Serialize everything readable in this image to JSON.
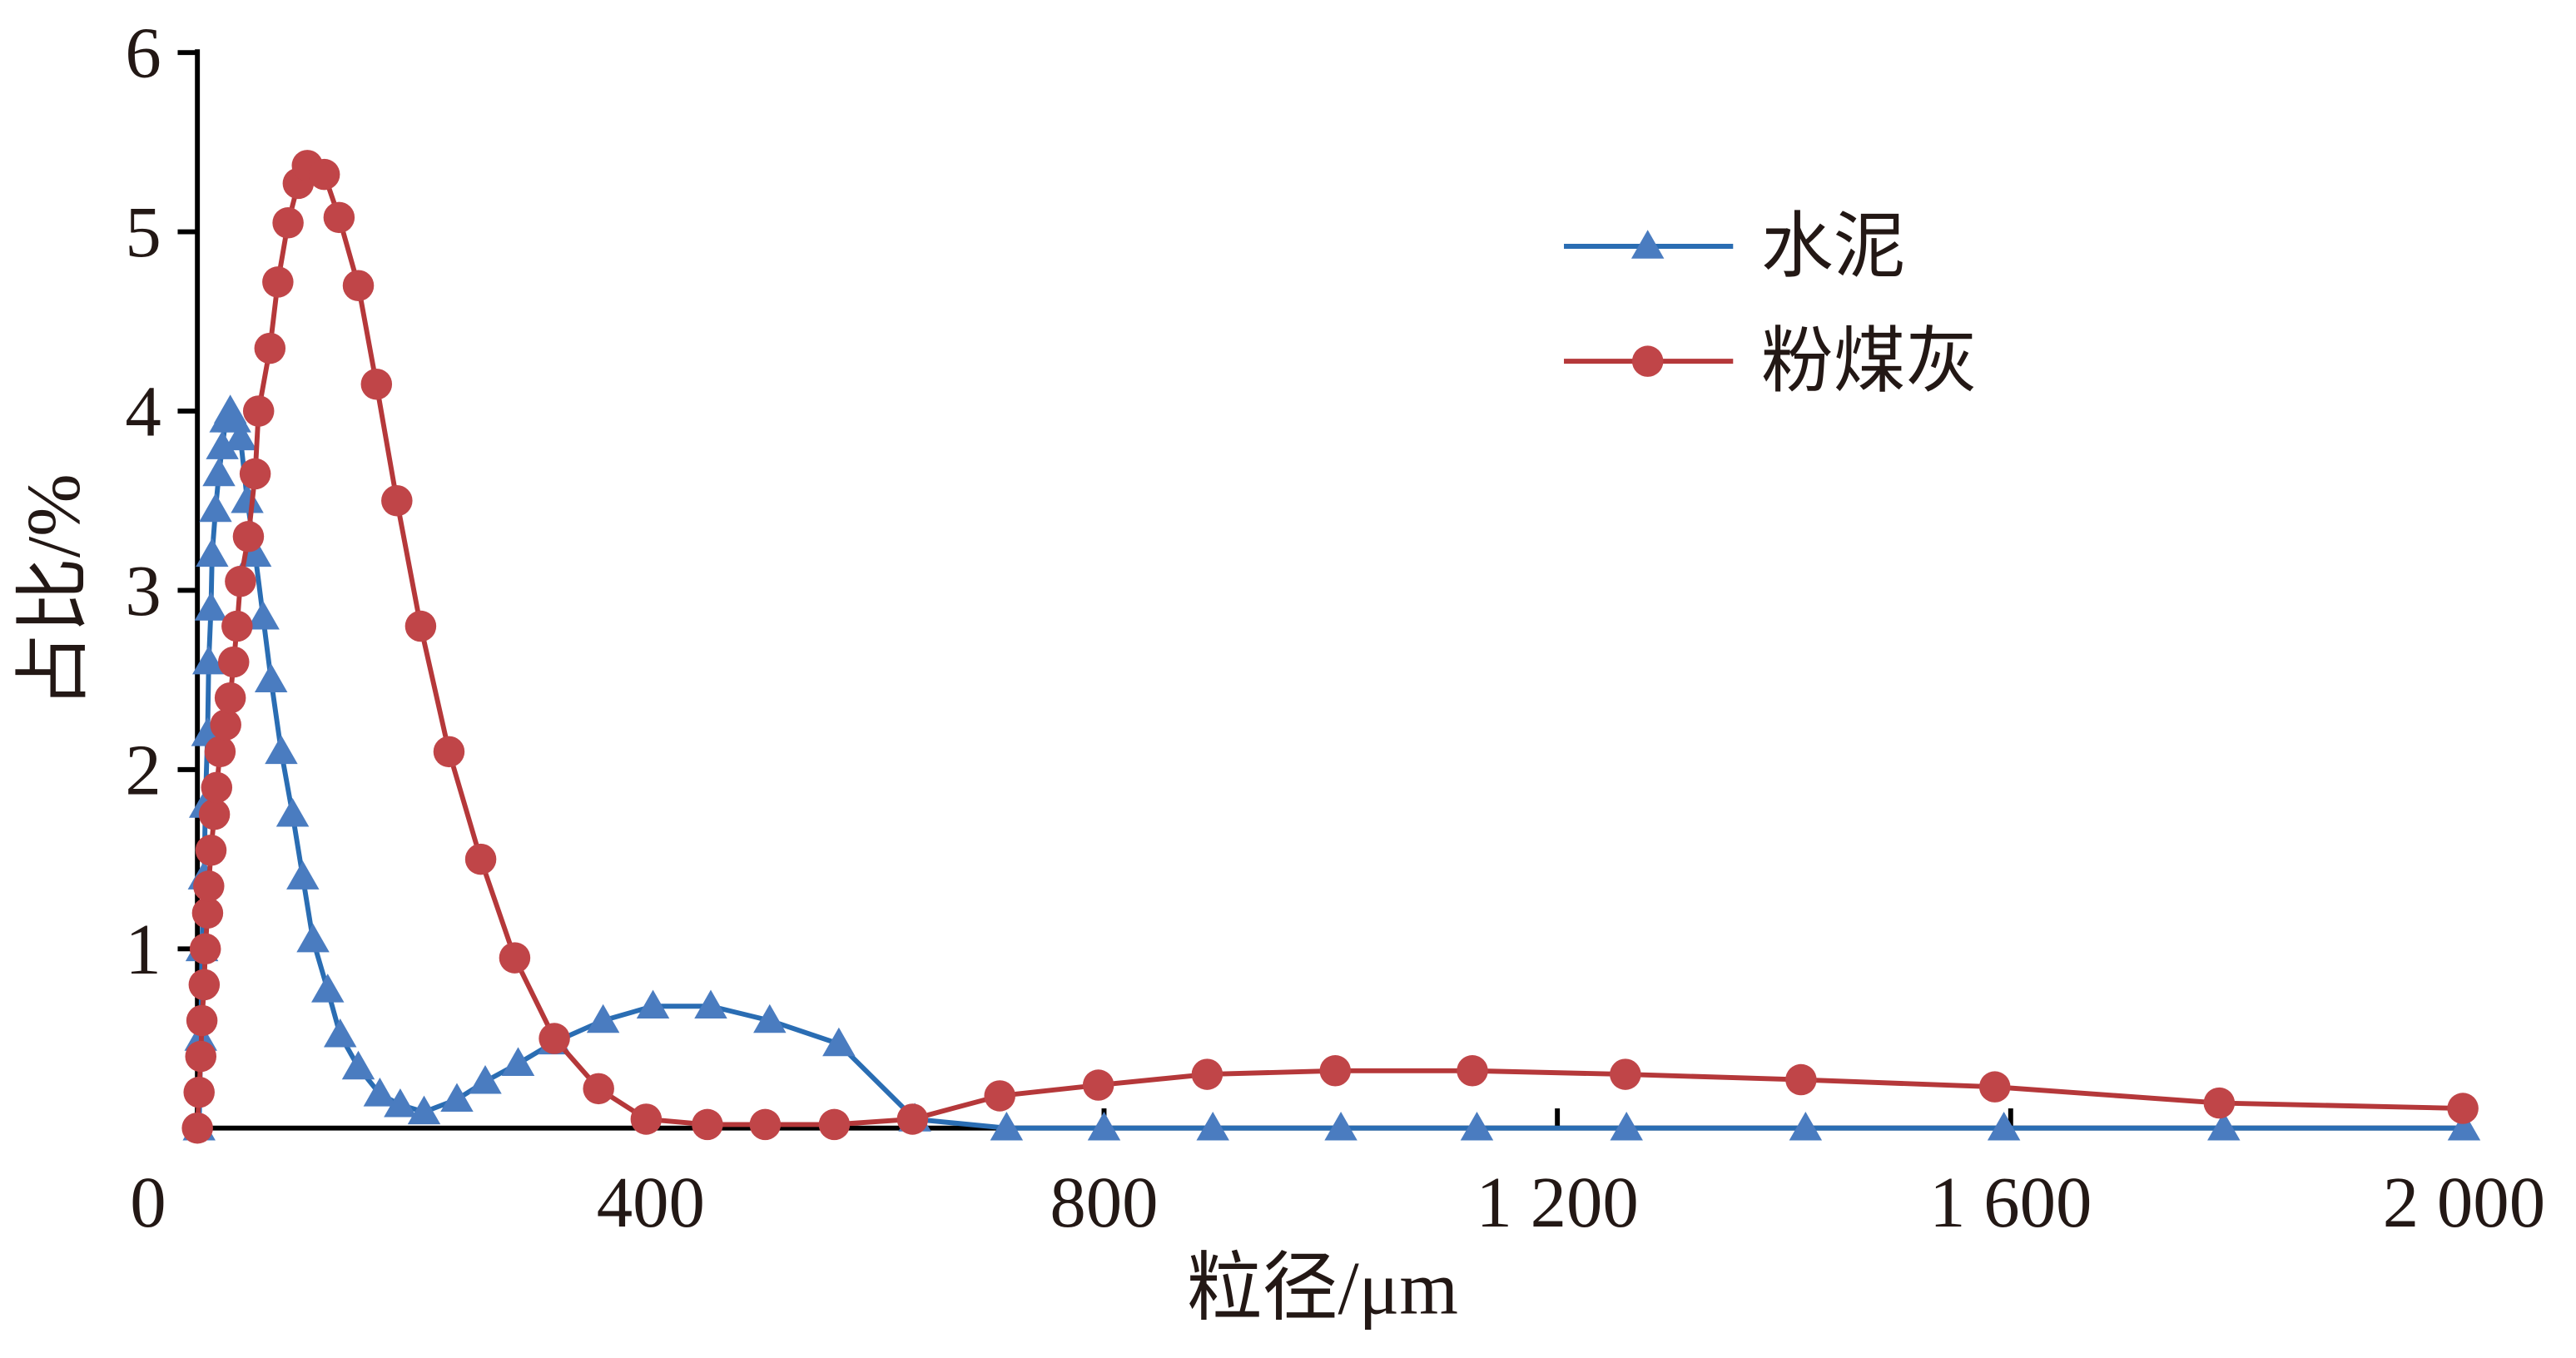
{
  "chart_data": {
    "type": "line",
    "xlabel": "粒径/μm",
    "ylabel": "占比/%",
    "xlim": [
      0,
      2000
    ],
    "ylim": [
      0,
      6
    ],
    "xticks": [
      0,
      400,
      800,
      {
        "value": 1200,
        "label": "1 200"
      },
      {
        "value": 1600,
        "label": "1 600"
      },
      {
        "value": 2000,
        "label": "2 000"
      }
    ],
    "yticks": [
      1,
      2,
      3,
      4,
      5,
      6
    ],
    "grid": false,
    "legend": "upper right",
    "series": [
      {
        "name": "水泥",
        "color": "#2a6db3",
        "marker": "triangle",
        "x": [
          1.5,
          3,
          4,
          6,
          7,
          9,
          10,
          12,
          13,
          16,
          19,
          22,
          25,
          29,
          33,
          38,
          44,
          51,
          58,
          65,
          74,
          84,
          93,
          102,
          115,
          126,
          142,
          161,
          179,
          200,
          229,
          254,
          283,
          315,
          358,
          402,
          453,
          505,
          566,
          633,
          714,
          800,
          896,
          1009,
          1129,
          1261,
          1419,
          1594,
          1788,
          2000
        ],
        "values": [
          0,
          0.5,
          1.0,
          1.4,
          1.8,
          2.2,
          2.6,
          2.9,
          3.2,
          3.45,
          3.65,
          3.8,
          3.95,
          4.0,
          3.95,
          3.85,
          3.5,
          3.2,
          2.85,
          2.5,
          2.1,
          1.75,
          1.4,
          1.05,
          0.77,
          0.52,
          0.34,
          0.19,
          0.13,
          0.09,
          0.16,
          0.26,
          0.36,
          0.48,
          0.6,
          0.68,
          0.68,
          0.6,
          0.47,
          0.05,
          0,
          0,
          0,
          0,
          0,
          0,
          0,
          0,
          0,
          0
        ]
      },
      {
        "name": "粉煤灰",
        "color": "#b5383a",
        "marker": "circle",
        "x": [
          0,
          1.5,
          3,
          4,
          6,
          7,
          9,
          10,
          12,
          15,
          17,
          20,
          25,
          29,
          32,
          35,
          38,
          45,
          51,
          54,
          64,
          71,
          80,
          89,
          97,
          112,
          125,
          142,
          158,
          176,
          197,
          222,
          250,
          280,
          315,
          354,
          396,
          450,
          501,
          562,
          631,
          708,
          795,
          891,
          1004,
          1125,
          1260,
          1415,
          1586,
          1784,
          1999
        ],
        "values": [
          0,
          0.2,
          0.4,
          0.6,
          0.8,
          1.0,
          1.2,
          1.35,
          1.55,
          1.75,
          1.9,
          2.1,
          2.25,
          2.4,
          2.6,
          2.8,
          3.05,
          3.3,
          3.65,
          4.0,
          4.35,
          4.72,
          5.05,
          5.27,
          5.37,
          5.32,
          5.08,
          4.7,
          4.15,
          3.5,
          2.8,
          2.1,
          1.5,
          0.95,
          0.5,
          0.22,
          0.05,
          0.02,
          0.02,
          0.02,
          0.05,
          0.18,
          0.24,
          0.3,
          0.32,
          0.32,
          0.3,
          0.27,
          0.23,
          0.14,
          0.11
        ]
      }
    ]
  }
}
